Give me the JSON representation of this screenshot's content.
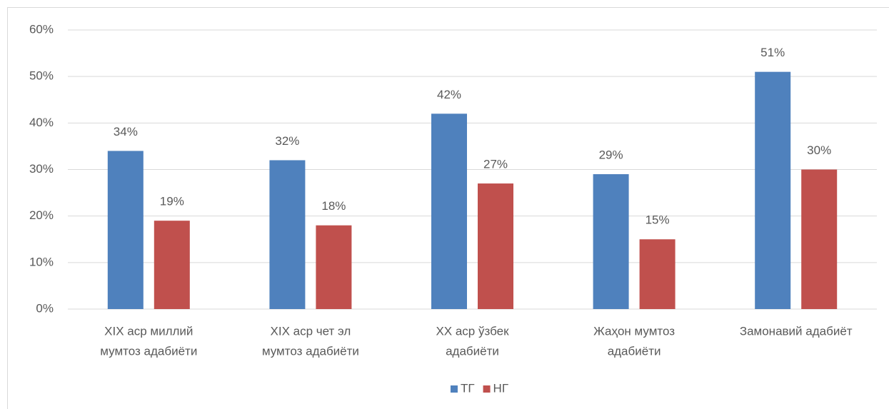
{
  "chart_data": {
    "type": "bar",
    "categories": [
      [
        "XIX аср миллий",
        "мумтоз адабиёти"
      ],
      [
        "XIX аср чет эл",
        "мумтоз адабиёти"
      ],
      [
        "XX аср ўзбек",
        "адабиёти"
      ],
      [
        "Жаҳон мумтоз",
        "адабиёти"
      ],
      [
        "Замонавий адабиёт"
      ]
    ],
    "series": [
      {
        "name": "ТГ",
        "color": "#4f81bd",
        "values": [
          34,
          32,
          42,
          29,
          51
        ],
        "value_labels": [
          "34%",
          "32%",
          "42%",
          "29%",
          "51%"
        ]
      },
      {
        "name": "НГ",
        "color": "#c0504d",
        "values": [
          19,
          18,
          27,
          15,
          30
        ],
        "value_labels": [
          "19%",
          "18%",
          "27%",
          "15%",
          "30%"
        ]
      }
    ],
    "ylim": [
      0,
      60
    ],
    "yticks": [
      {
        "value": 0,
        "label": "0%"
      },
      {
        "value": 10,
        "label": "10%"
      },
      {
        "value": 20,
        "label": "20%"
      },
      {
        "value": 30,
        "label": "30%"
      },
      {
        "value": 40,
        "label": "40%"
      },
      {
        "value": 50,
        "label": "50%"
      },
      {
        "value": 60,
        "label": "60%"
      }
    ],
    "grid": true,
    "legend": "bottom"
  }
}
